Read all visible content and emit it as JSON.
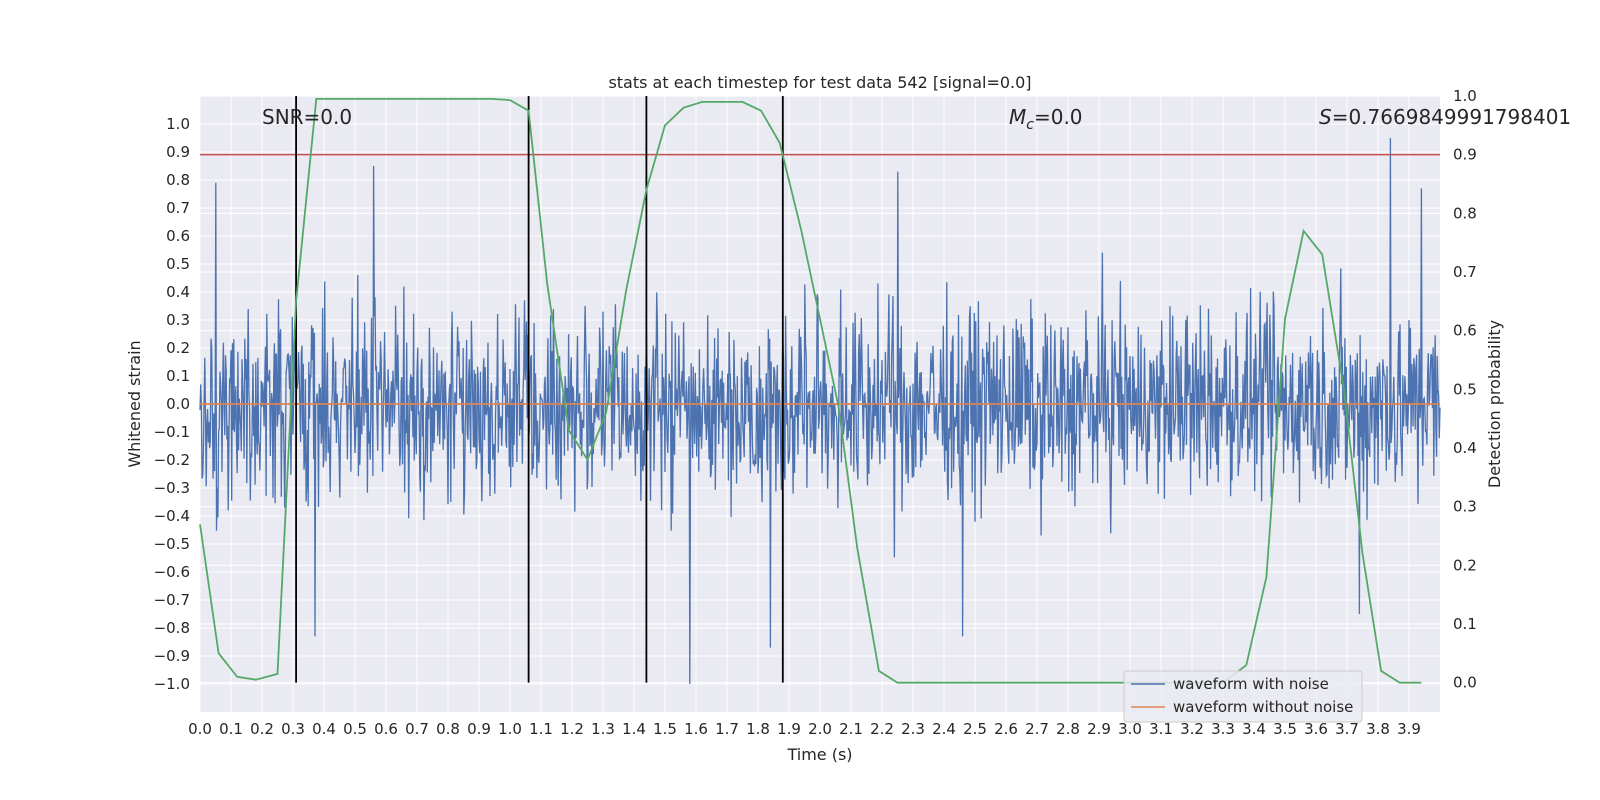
{
  "chart_data": {
    "type": "line",
    "title": "stats at each timestep for test data 542 [signal=0.0]",
    "xlabel": "Time (s)",
    "ylabel": "Whitened strain",
    "y2label": "Detection probability",
    "xlim": [
      0.0,
      4.0
    ],
    "ylim": [
      -1.1,
      1.1
    ],
    "y2lim": [
      -0.05,
      1.0
    ],
    "grid": true,
    "x_ticks": [
      "0.0",
      "0.1",
      "0.2",
      "0.3",
      "0.4",
      "0.5",
      "0.6",
      "0.7",
      "0.8",
      "0.9",
      "1.0",
      "1.1",
      "1.2",
      "1.3",
      "1.4",
      "1.5",
      "1.6",
      "1.7",
      "1.8",
      "1.9",
      "2.0",
      "2.1",
      "2.2",
      "2.3",
      "2.4",
      "2.5",
      "2.6",
      "2.7",
      "2.8",
      "2.9",
      "3.0",
      "3.1",
      "3.2",
      "3.3",
      "3.4",
      "3.5",
      "3.6",
      "3.7",
      "3.8",
      "3.9"
    ],
    "y_ticks": [
      "1.0",
      "0.9",
      "0.8",
      "0.7",
      "0.6",
      "0.5",
      "0.4",
      "0.3",
      "0.2",
      "0.1",
      "0.0",
      "−0.1",
      "−0.2",
      "−0.3",
      "−0.4",
      "−0.5",
      "−0.6",
      "−0.7",
      "−0.8",
      "−0.9",
      "−1.0"
    ],
    "y2_ticks": [
      "1.0",
      "0.9",
      "0.8",
      "0.7",
      "0.6",
      "0.5",
      "0.4",
      "0.3",
      "0.2",
      "0.1",
      "0.0"
    ],
    "annotations": {
      "snr": "SNR=0.0",
      "mc_symbol": "M",
      "mc_sub": "c",
      "mc_value": "=0.0",
      "s_symbol": "S",
      "s_value": "=0.7669849991798401"
    },
    "legend": {
      "placement": "bottom-right",
      "entries": [
        "waveform with noise",
        "waveform without noise"
      ]
    },
    "colors": {
      "noise": "#4c72b0",
      "clean": "#dd8452",
      "probability": "#55a868",
      "threshold": "#c44e52",
      "marker": "#000000",
      "plot_bg": "#eaeaf2",
      "grid": "#ffffff"
    },
    "series": [
      {
        "name": "waveform with noise",
        "kind": "noise",
        "envelope_amplitude": 0.5,
        "peaks": [
          [
            0.05,
            0.79
          ],
          [
            0.56,
            0.85
          ],
          [
            1.58,
            -1.0
          ],
          [
            2.25,
            0.83
          ],
          [
            3.84,
            0.95
          ],
          [
            3.94,
            0.77
          ],
          [
            0.37,
            -0.83
          ],
          [
            1.84,
            -0.87
          ],
          [
            2.46,
            -0.83
          ],
          [
            3.74,
            -0.75
          ]
        ]
      },
      {
        "name": "waveform without noise",
        "kind": "line",
        "x": [
          0.0,
          4.0
        ],
        "values": [
          0.0,
          0.0
        ]
      },
      {
        "kind": "probability",
        "axis": "y2",
        "x": [
          0.0,
          0.06,
          0.12,
          0.18,
          0.25,
          0.31,
          0.375,
          0.44,
          0.5,
          0.56,
          0.62,
          0.68,
          0.75,
          0.81,
          0.87,
          0.94,
          1.0,
          1.06,
          1.12,
          1.19,
          1.25,
          1.31,
          1.375,
          1.44,
          1.5,
          1.56,
          1.62,
          1.69,
          1.75,
          1.81,
          1.87,
          1.94,
          2.0,
          2.06,
          2.12,
          2.19,
          2.25,
          2.5,
          3.0,
          3.2,
          3.3,
          3.375,
          3.44,
          3.5,
          3.56,
          3.62,
          3.69,
          3.75,
          3.81,
          3.87,
          3.94
        ],
        "values": [
          0.27,
          0.05,
          0.01,
          0.005,
          0.015,
          0.65,
          0.995,
          0.995,
          0.995,
          0.995,
          0.995,
          0.995,
          0.995,
          0.995,
          0.995,
          0.995,
          0.993,
          0.975,
          0.68,
          0.43,
          0.38,
          0.46,
          0.67,
          0.84,
          0.95,
          0.98,
          0.99,
          0.99,
          0.99,
          0.975,
          0.92,
          0.77,
          0.62,
          0.47,
          0.23,
          0.02,
          0.0,
          0.0,
          0.0,
          0.0,
          0.0,
          0.03,
          0.18,
          0.62,
          0.77,
          0.73,
          0.5,
          0.22,
          0.02,
          0.0,
          0.0
        ]
      }
    ],
    "threshold": 0.9,
    "markers_x": [
      0.31,
      1.06,
      1.44,
      1.88
    ]
  }
}
